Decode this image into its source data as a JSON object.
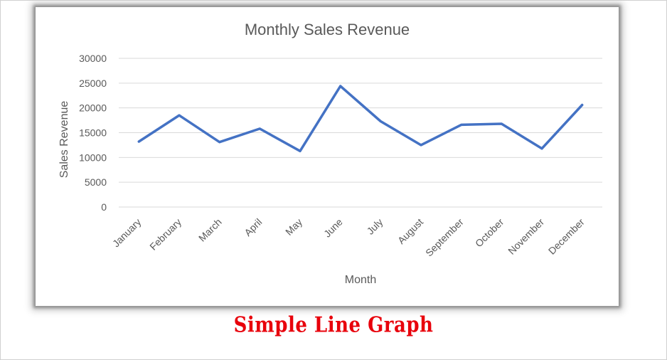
{
  "caption": {
    "text": "Simple Line Graph",
    "color": "#e8000b"
  },
  "chart_data": {
    "type": "line",
    "title": "Monthly Sales Revenue",
    "xlabel": "Month",
    "ylabel": "Sales Revenue",
    "categories": [
      "January",
      "February",
      "March",
      "April",
      "May",
      "June",
      "July",
      "August",
      "September",
      "October",
      "November",
      "December"
    ],
    "series": [
      {
        "values": [
          13200,
          18500,
          13100,
          15800,
          11300,
          24400,
          17300,
          12500,
          16600,
          16800,
          11800,
          20600
        ],
        "color": "#4472c4"
      }
    ],
    "ylim": [
      0,
      30000
    ],
    "yticks": [
      "0",
      "5000",
      "10000",
      "15000",
      "20000",
      "25000",
      "30000"
    ],
    "grid": true,
    "legend": "none"
  }
}
